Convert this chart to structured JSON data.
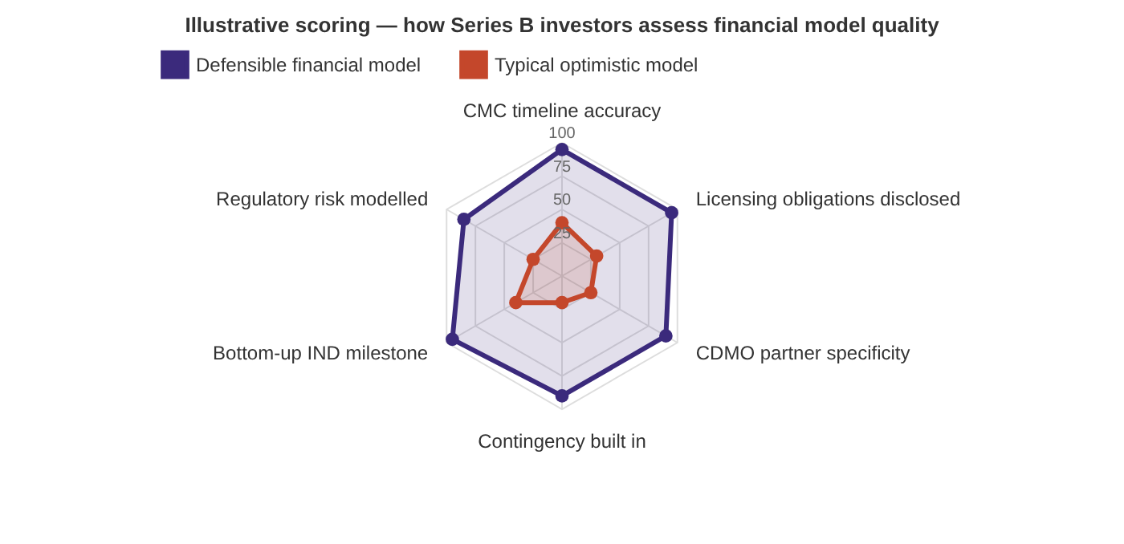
{
  "chart_data": {
    "type": "radar",
    "title": "Illustrative scoring — how Series B investors assess financial model quality",
    "categories": [
      "CMC timeline accuracy",
      "Licensing obligations disclosed",
      "CDMO partner specificity",
      "Contingency built in",
      "Bottom-up IND milestone",
      "Regulatory risk modelled"
    ],
    "series": [
      {
        "name": "Defensible financial model",
        "color": "#3b2a7c",
        "values": [
          95,
          95,
          90,
          90,
          95,
          85
        ]
      },
      {
        "name": "Typical optimistic model",
        "color": "#c4472b",
        "values": [
          40,
          30,
          25,
          20,
          40,
          25
        ]
      }
    ],
    "ylim": [
      0,
      100
    ],
    "yticks": [
      25,
      50,
      75,
      100
    ],
    "grid": true,
    "legend": "top",
    "marker": "circle",
    "line_style": "solid"
  }
}
